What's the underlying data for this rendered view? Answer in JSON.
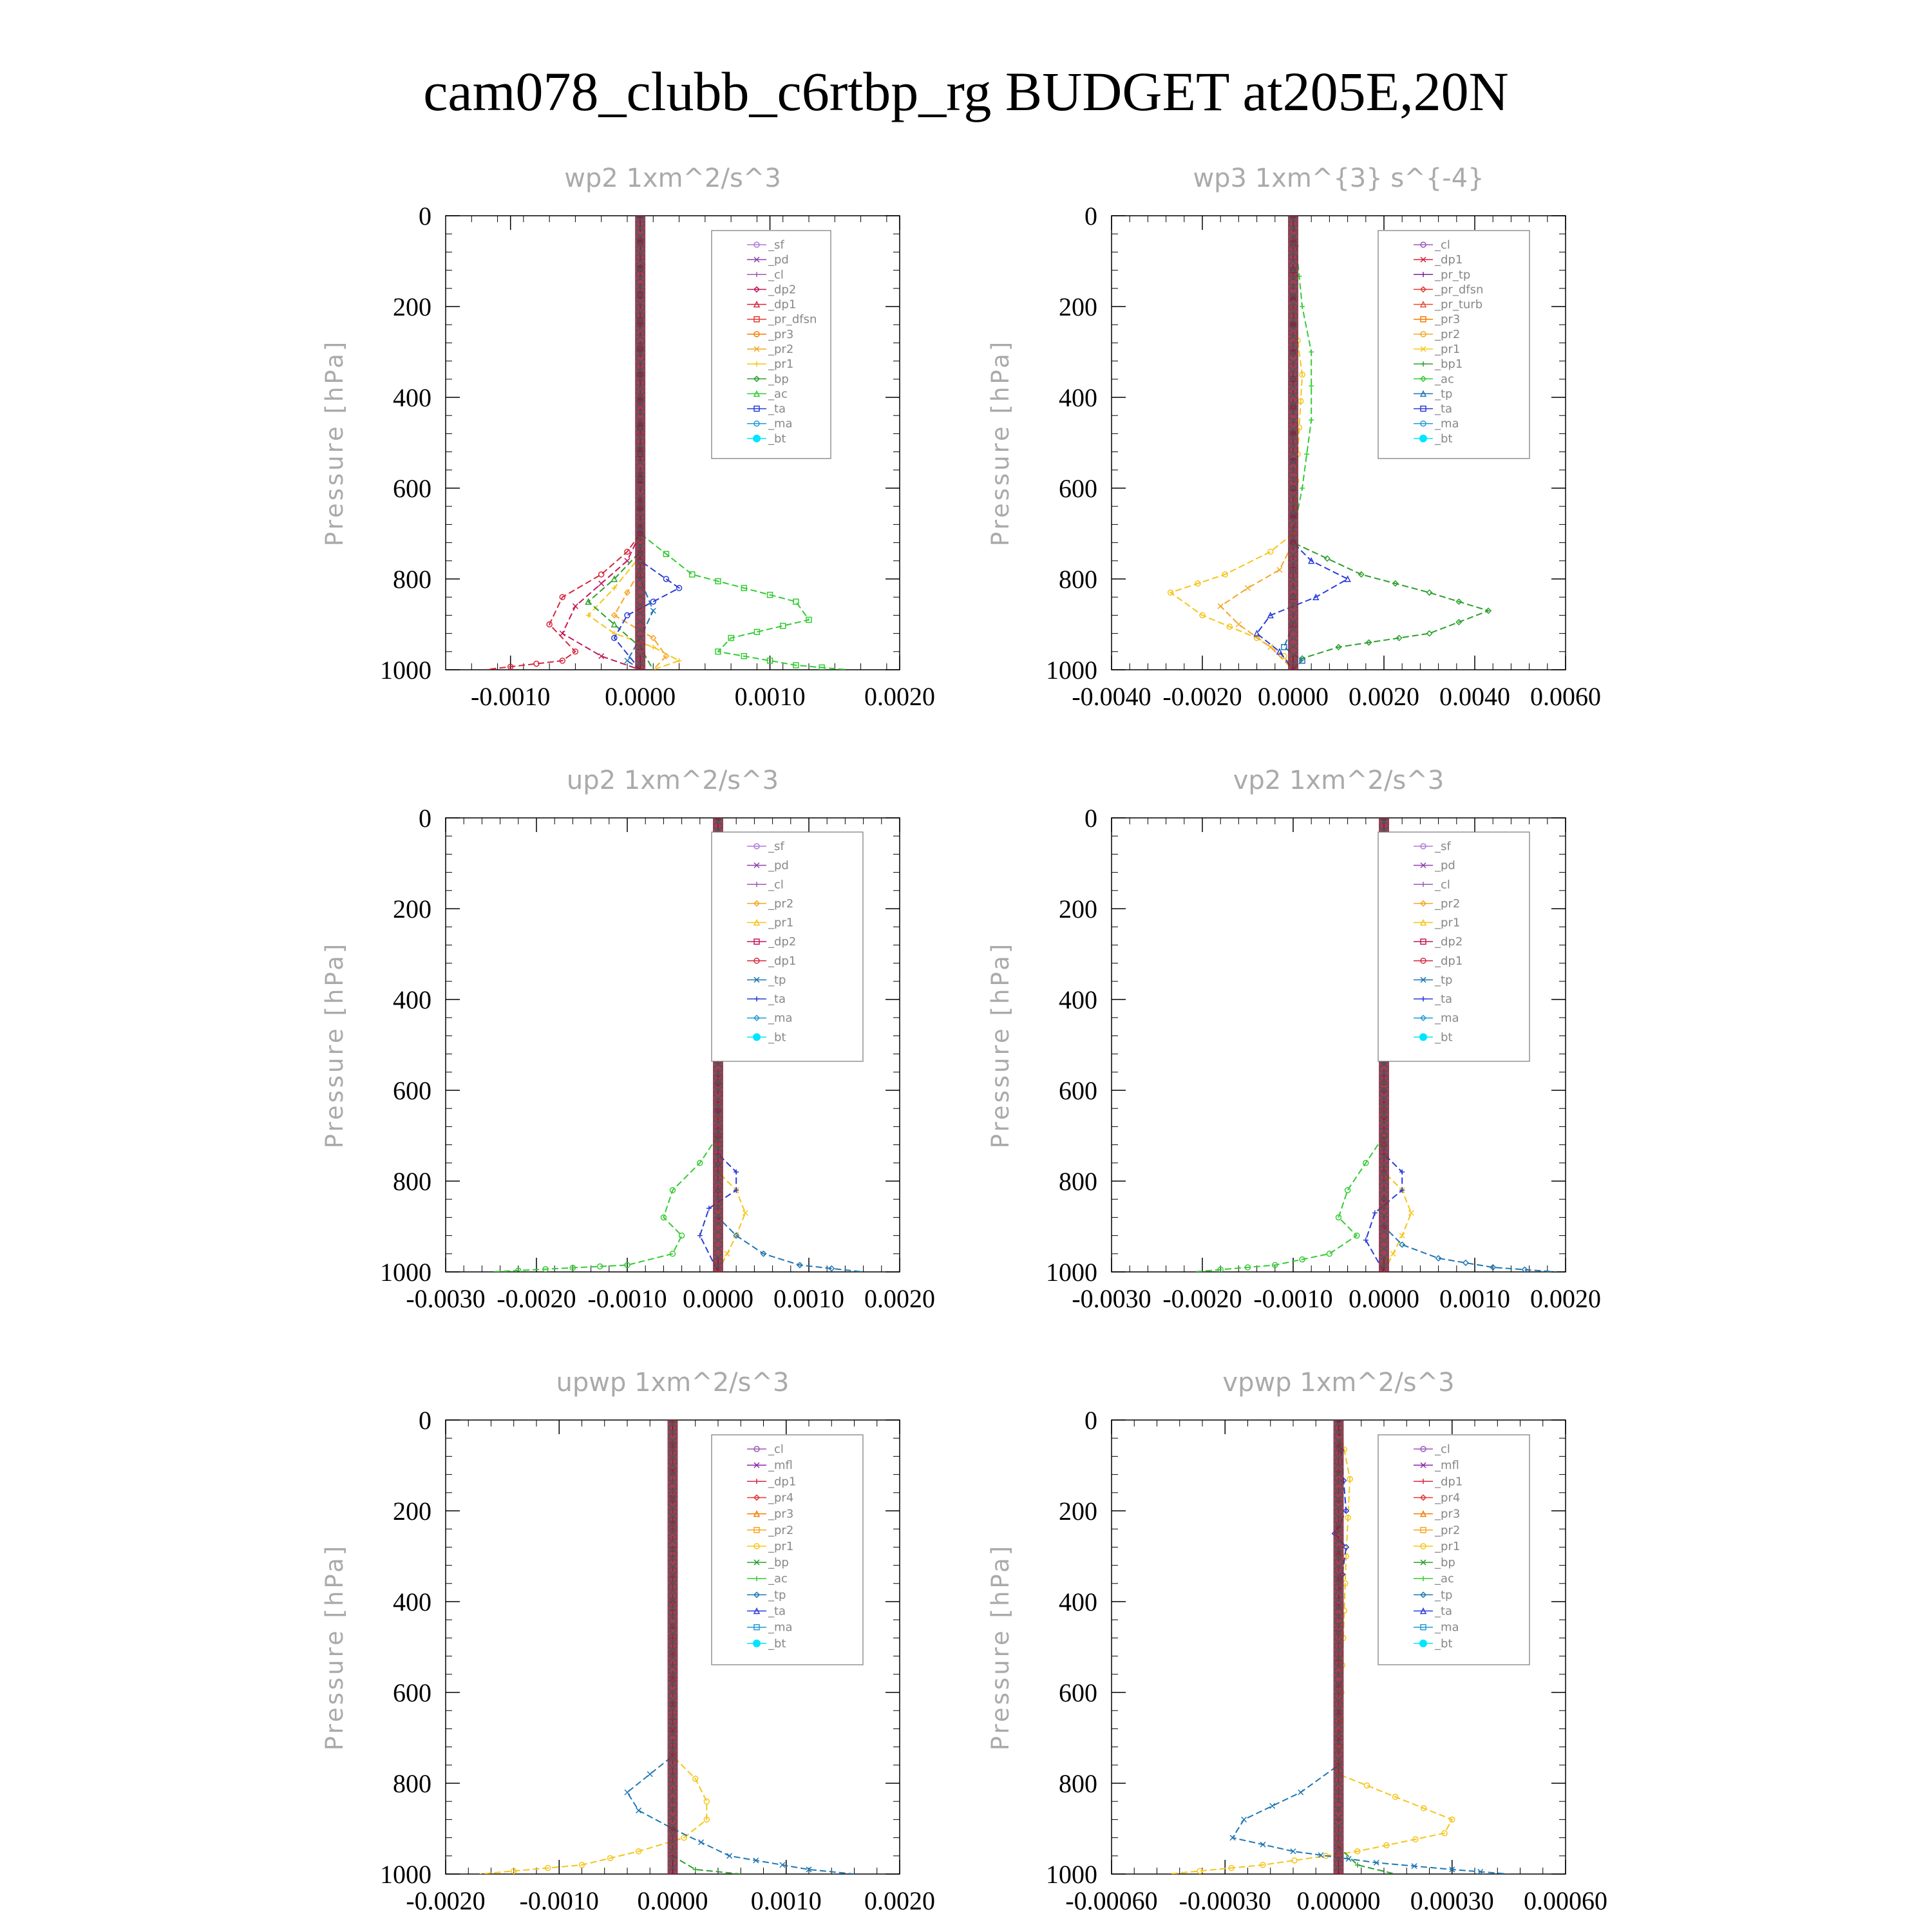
{
  "title": "cam078_clubb_c6rtbp_rg  BUDGET at205E,20N",
  "chart_data": [
    {
      "type": "line",
      "title": "wp2  1xm^2/s^3",
      "ylabel": "Pressure [hPa]",
      "xlim": [
        -0.0015,
        0.002
      ],
      "ylim": [
        0,
        1000
      ],
      "xticks": [
        "-0.0010",
        "0.0000",
        "0.0010",
        "0.0020"
      ],
      "xtick_values": [
        -0.001,
        0,
        0.001,
        0.002
      ],
      "yticks": [
        0,
        200,
        400,
        600,
        800,
        1000
      ],
      "legend": [
        "_sf",
        "_pd",
        "_cl",
        "_dp2",
        "_dp1",
        "_pr_dfsn",
        "_pr3",
        "_pr2",
        "_pr1",
        "_bp",
        "_ac",
        "_ta",
        "_ma",
        "_bt"
      ],
      "series": [
        {
          "name": "_dp1",
          "color": "#d7263d",
          "x": [
            0,
            0,
            -0.0001,
            -0.0003,
            -0.0006,
            -0.0007,
            -0.0005,
            -0.0006,
            -0.0012
          ],
          "y": [
            0,
            700,
            740,
            790,
            840,
            900,
            960,
            980,
            1000
          ]
        },
        {
          "name": "_dp2",
          "color": "#c2185b",
          "x": [
            0,
            0,
            -0.0001,
            -0.0003,
            -0.0005,
            -0.0006,
            -0.0003,
            0
          ],
          "y": [
            0,
            700,
            760,
            810,
            860,
            920,
            970,
            1000
          ]
        },
        {
          "name": "_pr2",
          "color": "#f5c518",
          "x": [
            0,
            0,
            -0.0002,
            -0.0004,
            -0.0002,
            0.0001,
            0.0003,
            0.0001
          ],
          "y": [
            0,
            750,
            820,
            880,
            920,
            950,
            980,
            1000
          ]
        },
        {
          "name": "_pr3",
          "color": "#f5a623",
          "x": [
            0,
            0,
            -0.0001,
            -0.0002,
            0.0001,
            0.0002,
            0.0001
          ],
          "y": [
            0,
            780,
            830,
            880,
            930,
            970,
            1000
          ]
        },
        {
          "name": "_pr1",
          "color": "#2ca02c",
          "x": [
            0,
            0,
            -0.0002,
            -0.0004,
            -0.0002,
            0,
            0.0001
          ],
          "y": [
            0,
            740,
            800,
            850,
            900,
            950,
            1000
          ]
        },
        {
          "name": "_bp",
          "color": "#33cc33",
          "x": [
            0,
            0,
            0.0004,
            0.0012,
            0.0013,
            0.0007,
            0.0006,
            0.0012,
            0.0016
          ],
          "y": [
            0,
            700,
            790,
            850,
            890,
            930,
            960,
            990,
            1000
          ]
        },
        {
          "name": "_ta",
          "color": "#2a3cd6",
          "x": [
            0,
            0,
            0.0002,
            0.0003,
            0.0001,
            -0.0001,
            -0.0002,
            0
          ],
          "y": [
            0,
            760,
            800,
            820,
            850,
            880,
            930,
            1000
          ]
        },
        {
          "name": "_ma",
          "color": "#1f77b4",
          "x": [
            0,
            0,
            0.0001,
            0,
            -0.0001,
            0
          ],
          "y": [
            0,
            800,
            870,
            930,
            980,
            1000
          ]
        }
      ]
    },
    {
      "type": "line",
      "title": "wp3  1xm^{3} s^{-4}",
      "ylabel": "Pressure [hPa]",
      "xlim": [
        -0.004,
        0.006
      ],
      "ylim": [
        0,
        1000
      ],
      "xticks": [
        "-0.0040",
        "-0.0020",
        "0.0000",
        "0.0020",
        "0.0040",
        "0.0060"
      ],
      "xtick_values": [
        -0.004,
        -0.002,
        0,
        0.002,
        0.004,
        0.006
      ],
      "yticks": [
        0,
        200,
        400,
        600,
        800,
        1000
      ],
      "legend": [
        "_cl",
        "_dp1",
        "_pr_tp",
        "_pr_dfsn",
        "_pr_turb",
        "_pr3",
        "_pr2",
        "_pr1",
        "_bp1",
        "_ac",
        "_tp",
        "_ta",
        "_ma",
        "_bt"
      ],
      "series": [
        {
          "name": "_pr2",
          "color": "#f5c518",
          "x": [
            0,
            0,
            0.0002,
            0,
            -0.0005,
            -0.0015,
            -0.0027,
            -0.002,
            -0.0008,
            -0.0002,
            0
          ],
          "y": [
            0,
            200,
            350,
            700,
            740,
            790,
            830,
            880,
            930,
            970,
            1000
          ]
        },
        {
          "name": "_pr3",
          "color": "#f5a623",
          "x": [
            0,
            0,
            -0.0003,
            -0.001,
            -0.0016,
            -0.0012,
            -0.0005,
            0
          ],
          "y": [
            0,
            720,
            780,
            820,
            860,
            900,
            950,
            1000
          ]
        },
        {
          "name": "_pr1",
          "color": "#33cc33",
          "x": [
            0,
            0.0002,
            0.0004,
            0.0004,
            0.0002,
            0
          ],
          "y": [
            0,
            200,
            300,
            450,
            600,
            700
          ]
        },
        {
          "name": "_bp1",
          "color": "#2ca02c",
          "x": [
            0,
            0,
            0.0015,
            0.003,
            0.0043,
            0.003,
            0.001,
            0.0002,
            0
          ],
          "y": [
            0,
            720,
            790,
            830,
            870,
            920,
            950,
            975,
            1000
          ]
        },
        {
          "name": "_ta",
          "color": "#2a3cd6",
          "x": [
            0,
            0,
            0.0004,
            0.0012,
            0.0005,
            -0.0005,
            -0.0008,
            -0.0003,
            0
          ],
          "y": [
            0,
            720,
            760,
            800,
            840,
            880,
            920,
            960,
            1000
          ]
        },
        {
          "name": "_ma",
          "color": "#1f77b4",
          "x": [
            0,
            0,
            -0.0002,
            0.0002,
            0
          ],
          "y": [
            0,
            900,
            950,
            980,
            1000
          ]
        }
      ]
    },
    {
      "type": "line",
      "title": "up2  1xm^2/s^3",
      "ylabel": "Pressure [hPa]",
      "xlim": [
        -0.003,
        0.002
      ],
      "ylim": [
        0,
        1000
      ],
      "xticks": [
        "-0.0030",
        "-0.0020",
        "-0.0010",
        "0.0000",
        "0.0010",
        "0.0020"
      ],
      "xtick_values": [
        -0.003,
        -0.002,
        -0.001,
        0,
        0.001,
        0.002
      ],
      "yticks": [
        0,
        200,
        400,
        600,
        800,
        1000
      ],
      "legend": [
        "_sf",
        "_pd",
        "_cl",
        "_pr2",
        "_pr1",
        "_dp2",
        "_dp1",
        "_tp",
        "_ta",
        "_ma",
        "_bt"
      ],
      "series": [
        {
          "name": "_dp1",
          "color": "#33cc33",
          "x": [
            0,
            0,
            -0.0002,
            -0.0005,
            -0.0006,
            -0.0004,
            -0.0005,
            -0.001,
            -0.0025
          ],
          "y": [
            0,
            700,
            760,
            820,
            880,
            920,
            960,
            985,
            1000
          ]
        },
        {
          "name": "_pr1",
          "color": "#f5c518",
          "x": [
            0,
            0,
            0.0002,
            0.0003,
            0.0002,
            0.0001,
            0
          ],
          "y": [
            0,
            780,
            820,
            870,
            920,
            960,
            1000
          ]
        },
        {
          "name": "_ta",
          "color": "#2a3cd6",
          "x": [
            0,
            0,
            0.0002,
            0.0002,
            -0.0001,
            -0.0002,
            0
          ],
          "y": [
            0,
            740,
            780,
            820,
            860,
            920,
            1000
          ]
        },
        {
          "name": "_tp",
          "color": "#1f77b4",
          "x": [
            0,
            0,
            0.0002,
            0.0005,
            0.0009,
            0.0016
          ],
          "y": [
            0,
            880,
            920,
            960,
            985,
            1000
          ]
        }
      ]
    },
    {
      "type": "line",
      "title": "vp2  1xm^2/s^3",
      "ylabel": "Pressure [hPa]",
      "xlim": [
        -0.003,
        0.002
      ],
      "ylim": [
        0,
        1000
      ],
      "xticks": [
        "-0.0030",
        "-0.0020",
        "-0.0010",
        "0.0000",
        "0.0010",
        "0.0020"
      ],
      "xtick_values": [
        -0.003,
        -0.002,
        -0.001,
        0,
        0.001,
        0.002
      ],
      "yticks": [
        0,
        200,
        400,
        600,
        800,
        1000
      ],
      "legend": [
        "_sf",
        "_pd",
        "_cl",
        "_pr2",
        "_pr1",
        "_dp2",
        "_dp1",
        "_tp",
        "_ta",
        "_ma",
        "_bt"
      ],
      "series": [
        {
          "name": "_dp1",
          "color": "#33cc33",
          "x": [
            0,
            0,
            -0.0002,
            -0.0004,
            -0.0005,
            -0.0003,
            -0.0006,
            -0.0012,
            -0.0021
          ],
          "y": [
            0,
            700,
            760,
            820,
            880,
            920,
            960,
            985,
            1000
          ]
        },
        {
          "name": "_pr1",
          "color": "#f5c518",
          "x": [
            0,
            0,
            0.0002,
            0.0003,
            0.0002,
            0.0001,
            0
          ],
          "y": [
            0,
            780,
            820,
            870,
            920,
            960,
            1000
          ]
        },
        {
          "name": "_ta",
          "color": "#2a3cd6",
          "x": [
            0,
            0,
            0.0002,
            0.0002,
            -0.0001,
            -0.0002,
            0
          ],
          "y": [
            0,
            740,
            780,
            820,
            870,
            930,
            1000
          ]
        },
        {
          "name": "_tp",
          "color": "#1f77b4",
          "x": [
            0,
            0,
            0.0002,
            0.0006,
            0.0012,
            0.0019
          ],
          "y": [
            0,
            900,
            940,
            970,
            990,
            1000
          ]
        }
      ]
    },
    {
      "type": "line",
      "title": "upwp  1xm^2/s^3",
      "ylabel": "Pressure [hPa]",
      "xlim": [
        -0.002,
        0.002
      ],
      "ylim": [
        0,
        1000
      ],
      "xticks": [
        "-0.0020",
        "-0.0010",
        "0.0000",
        "0.0010",
        "0.0020"
      ],
      "xtick_values": [
        -0.002,
        -0.001,
        0,
        0.001,
        0.002
      ],
      "yticks": [
        0,
        200,
        400,
        600,
        800,
        1000
      ],
      "legend": [
        "_cl",
        "_mfl",
        "_dp1",
        "_pr4",
        "_pr3",
        "_pr2",
        "_pr1",
        "_bp",
        "_ac",
        "_tp",
        "_ta",
        "_ma",
        "_bt"
      ],
      "series": [
        {
          "name": "_pr1",
          "color": "#f5c518",
          "x": [
            0,
            0,
            0.0002,
            0.0003,
            0.0003,
            0.0001,
            -0.0003,
            -0.0008,
            -0.0017
          ],
          "y": [
            0,
            740,
            790,
            840,
            880,
            920,
            950,
            980,
            1000
          ]
        },
        {
          "name": "_tp",
          "color": "#1f77b4",
          "x": [
            0,
            0,
            -0.0002,
            -0.0004,
            -0.0003,
            0,
            0.0005,
            0.0012,
            0.0016
          ],
          "y": [
            0,
            740,
            780,
            820,
            860,
            900,
            960,
            990,
            1000
          ]
        },
        {
          "name": "_bp",
          "color": "#2ca02c",
          "x": [
            0,
            0,
            0.0002,
            0.0006
          ],
          "y": [
            0,
            960,
            990,
            1000
          ]
        }
      ]
    },
    {
      "type": "line",
      "title": "vpwp  1xm^2/s^3",
      "ylabel": "Pressure [hPa]",
      "xlim": [
        -0.0006,
        0.0006
      ],
      "ylim": [
        0,
        1000
      ],
      "xticks": [
        "-0.00060",
        "-0.00030",
        "0.00000",
        "0.00030",
        "0.00060"
      ],
      "xtick_values": [
        -0.0006,
        -0.0003,
        0,
        0.0003,
        0.0006
      ],
      "yticks": [
        0,
        200,
        400,
        600,
        800,
        1000
      ],
      "legend": [
        "_cl",
        "_mfl",
        "_dp1",
        "_pr4",
        "_pr3",
        "_pr2",
        "_pr1",
        "_bp",
        "_ac",
        "_tp",
        "_ta",
        "_ma",
        "_bt"
      ],
      "series": [
        {
          "name": "_pr1",
          "color": "#f5c518",
          "x": [
            0,
            3e-05,
            2e-05,
            0,
            0.00015,
            0.0003,
            0.00028,
            5e-05,
            -0.0002,
            -0.00045
          ],
          "y": [
            0,
            130,
            300,
            780,
            830,
            880,
            910,
            950,
            980,
            1000
          ]
        },
        {
          "name": "_tp",
          "color": "#1f77b4",
          "x": [
            0,
            0,
            -0.0001,
            -0.00025,
            -0.00028,
            -0.00012,
            0.0001,
            0.0003,
            0.00045
          ],
          "y": [
            0,
            760,
            820,
            880,
            920,
            950,
            975,
            990,
            1000
          ]
        },
        {
          "name": "_bp",
          "color": "#2ca02c",
          "x": [
            0,
            0,
            5e-05,
            0.00015
          ],
          "y": [
            0,
            940,
            980,
            1000
          ]
        },
        {
          "name": "_ta",
          "color": "#2a3cd6",
          "x": [
            0,
            2e-05,
            -1e-05,
            2e-05,
            0
          ],
          "y": [
            0,
            200,
            250,
            280,
            400
          ]
        }
      ]
    }
  ]
}
